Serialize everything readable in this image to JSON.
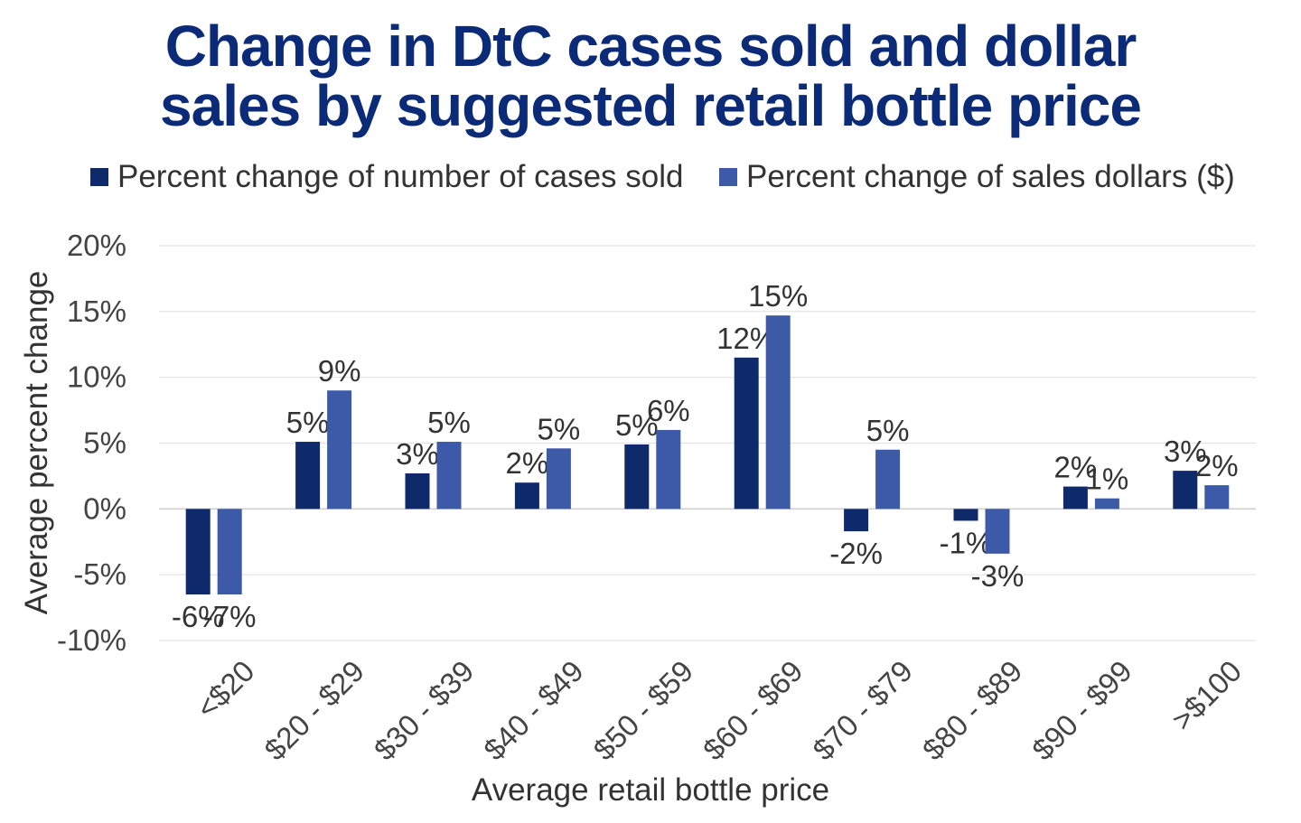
{
  "chart_data": {
    "type": "bar",
    "title_lines": [
      "Change in DtC cases sold and dollar",
      "sales by suggested retail bottle price"
    ],
    "xlabel": "Average retail bottle price",
    "ylabel": "Average percent change",
    "ylim": [
      -10,
      20
    ],
    "yticks": [
      20,
      15,
      10,
      5,
      0,
      -5,
      -10
    ],
    "ytick_labels": [
      "20%",
      "15%",
      "10%",
      "5%",
      "0%",
      "-5%",
      "-10%"
    ],
    "grid": true,
    "legend_position": "top",
    "categories": [
      "<$20",
      "$20 - $29",
      "$30 - $39",
      "$40 - $49",
      "$50 - $59",
      "$60 - $69",
      "$70 - $79",
      "$80 - $89",
      "$90 - $99",
      ">$100"
    ],
    "series": [
      {
        "name": "Percent change of number of cases sold",
        "color": "#0f2a6b",
        "values": [
          -6.5,
          5.1,
          2.7,
          2.0,
          4.9,
          11.5,
          -1.7,
          -0.9,
          1.7,
          2.9
        ],
        "labels": [
          "-6%",
          "5%",
          "3%",
          "2%",
          "5%",
          "12%",
          "-2%",
          "-1%",
          "2%",
          "3%"
        ]
      },
      {
        "name": "Percent change of sales dollars ($)",
        "color": "#3d5aa8",
        "values": [
          -6.5,
          9.0,
          5.1,
          4.6,
          6.0,
          14.7,
          4.5,
          -3.4,
          0.8,
          1.8
        ],
        "labels": [
          "-7%",
          "9%",
          "5%",
          "5%",
          "6%",
          "15%",
          "5%",
          "-3%",
          "1%",
          "2%"
        ]
      }
    ]
  }
}
